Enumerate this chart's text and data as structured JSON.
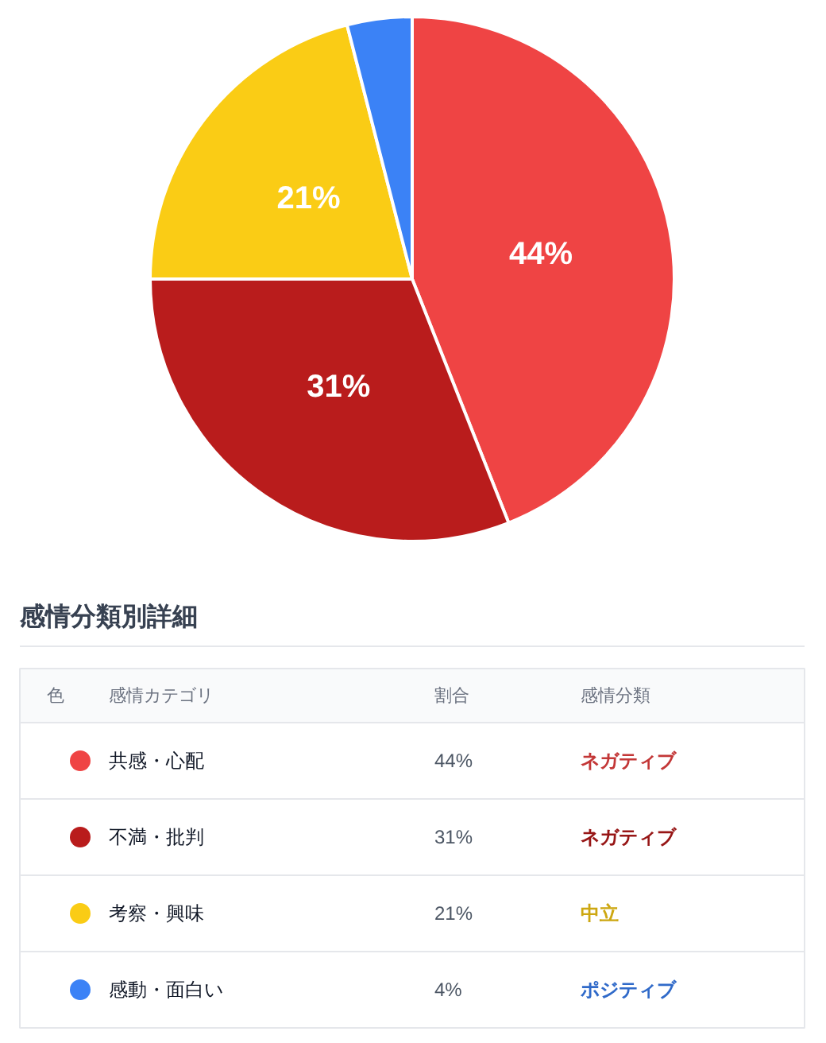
{
  "chart_data": {
    "type": "pie",
    "categories": [
      "共感・心配",
      "不満・批判",
      "考察・興味",
      "感動・面白い"
    ],
    "values": [
      44,
      31,
      21,
      4
    ],
    "colors": [
      "#ef4444",
      "#b91c1c",
      "#facc15",
      "#3b82f6"
    ],
    "value_labels": [
      "44%",
      "31%",
      "21%",
      "4%"
    ],
    "legend": "bottom",
    "legend_title": "感情分類別詳細",
    "annotations": [
      "色",
      "感情カテゴリ",
      "割合",
      "感情分類",
      "ネガティブ",
      "ネガティブ",
      "中立",
      "ポジティブ"
    ]
  }
}
